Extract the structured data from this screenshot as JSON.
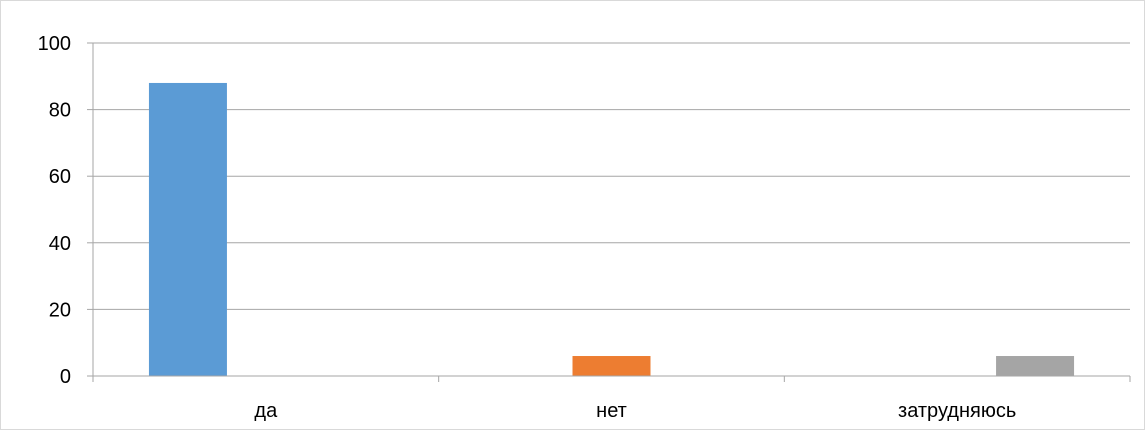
{
  "chart_data": {
    "type": "bar",
    "categories": [
      "да",
      "нет",
      "затрудняюсь"
    ],
    "series": [
      {
        "values": [
          88,
          null,
          null
        ],
        "color": "#5b9bd5"
      },
      {
        "values": [
          null,
          6,
          null
        ],
        "color": "#ed7d31"
      },
      {
        "values": [
          null,
          null,
          6
        ],
        "color": "#a5a5a5"
      }
    ],
    "y_ticks": [
      "0",
      "20",
      "40",
      "60",
      "80",
      "100"
    ],
    "ylim": [
      0,
      100
    ],
    "grid": true,
    "legend": "none",
    "gridline_color": "#a6a6a6"
  }
}
